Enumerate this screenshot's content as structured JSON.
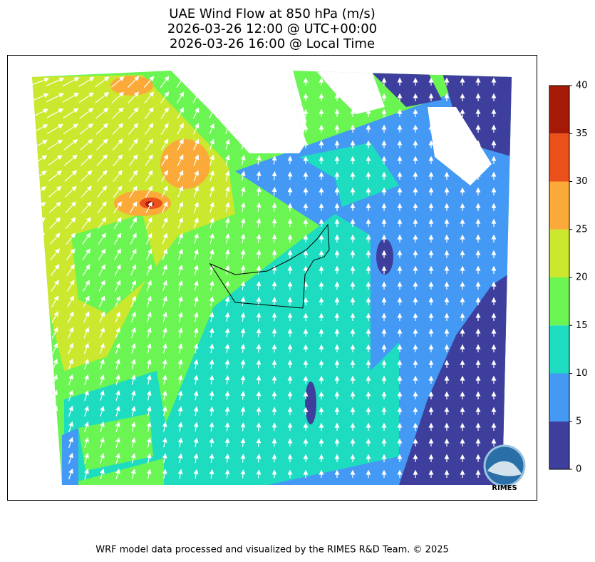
{
  "title": [
    "UAE Wind Flow at 850 hPa (m/s)",
    "2026-03-26 12:00 @ UTC+00:00",
    "2026-03-26 16:00 @ Local Time"
  ],
  "colorbar": {
    "ticks": [
      0,
      5,
      10,
      15,
      20,
      25,
      30,
      35,
      40
    ],
    "colors": [
      "#3e3f9d",
      "#4499f4",
      "#1edcc0",
      "#6bf552",
      "#cbe72e",
      "#fbaa3a",
      "#e9501a",
      "#a41a06"
    ]
  },
  "logo": "RIMES",
  "footer": "WRF model data processed and visualized by the RIMES R&D Team. © 2025"
}
